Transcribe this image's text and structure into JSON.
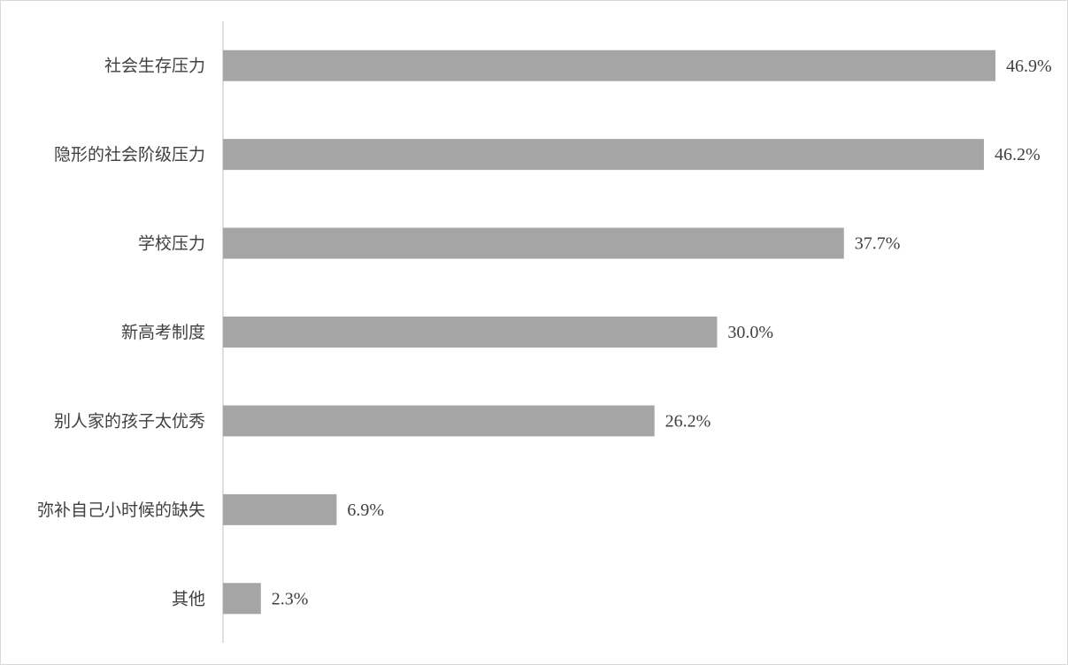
{
  "chart_data": {
    "type": "hbar",
    "categories": [
      "社会生存压力",
      "隐形的社会阶级压力",
      "学校压力",
      "新高考制度",
      "别人家的孩子太优秀",
      "弥补自己小时候的缺失",
      "其他"
    ],
    "values": [
      46.9,
      46.2,
      37.7,
      30.0,
      26.2,
      6.9,
      2.3
    ],
    "value_labels": [
      "46.9%",
      "46.2%",
      "37.7%",
      "30.0%",
      "26.2%",
      "6.9%",
      "2.3%"
    ],
    "color": "#a5a5a5",
    "xlim": [
      0,
      50
    ]
  }
}
